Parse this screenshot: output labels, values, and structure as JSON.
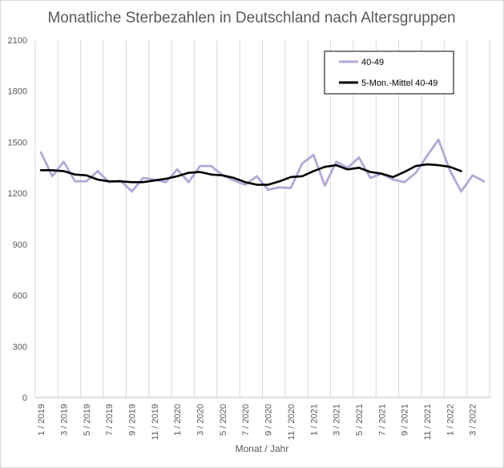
{
  "chart_data": {
    "type": "line",
    "title": "Monatliche Sterbezahlen in Deutschland nach Altersgruppen",
    "xlabel": "Monat / Jahr",
    "ylabel": "",
    "ylim": [
      0,
      2100
    ],
    "yticks": [
      "0",
      "300",
      "600",
      "900",
      "1200",
      "1500",
      "1800",
      "2100"
    ],
    "x": [
      "1/2019",
      "2/2019",
      "3/2019",
      "4/2019",
      "5/2019",
      "6/2019",
      "7/2019",
      "8/2019",
      "9/2019",
      "10/2019",
      "11/2019",
      "12/2019",
      "1/2020",
      "2/2020",
      "3/2020",
      "4/2020",
      "5/2020",
      "6/2020",
      "7/2020",
      "8/2020",
      "9/2020",
      "10/2020",
      "11/2020",
      "12/2020",
      "1/2021",
      "2/2021",
      "3/2021",
      "4/2021",
      "5/2021",
      "6/2021",
      "7/2021",
      "8/2021",
      "9/2021",
      "10/2021",
      "11/2021",
      "12/2021",
      "1/2022",
      "2/2022",
      "3/2022",
      "4/2022"
    ],
    "xtick_labels": [
      "1 / 2019",
      "3 / 2019",
      "5 / 2019",
      "7 / 2019",
      "9 / 2019",
      "11 / 2019",
      "1 / 2020",
      "3 / 2020",
      "5 / 2020",
      "7 / 2020",
      "9 / 2020",
      "11 / 2020",
      "1 / 2021",
      "3 / 2021",
      "5 / 2021",
      "7 / 2021",
      "9 / 2021",
      "11 / 2021",
      "1 / 2022",
      "3 / 2022"
    ],
    "grid": "vertical",
    "legend_position": "top-right",
    "series": [
      {
        "name": "40-49",
        "color": "#b4a7d6",
        "values": [
          1440,
          1300,
          1385,
          1270,
          1270,
          1330,
          1265,
          1275,
          1210,
          1290,
          1280,
          1265,
          1340,
          1265,
          1360,
          1360,
          1305,
          1275,
          1250,
          1300,
          1220,
          1235,
          1230,
          1375,
          1425,
          1245,
          1385,
          1350,
          1410,
          1290,
          1315,
          1280,
          1265,
          1320,
          1420,
          1515,
          1335,
          1210,
          1305,
          1270
        ]
      },
      {
        "name": "5-Mon.-Mittel 40-49",
        "color": "#000000",
        "values": [
          1335,
          1335,
          1330,
          1310,
          1305,
          1280,
          1270,
          1270,
          1265,
          1265,
          1275,
          1285,
          1300,
          1320,
          1325,
          1310,
          1305,
          1290,
          1265,
          1250,
          1250,
          1270,
          1295,
          1300,
          1330,
          1355,
          1365,
          1340,
          1350,
          1325,
          1315,
          1295,
          1325,
          1360,
          1370,
          1365,
          1355,
          1330,
          null,
          null
        ]
      }
    ]
  }
}
